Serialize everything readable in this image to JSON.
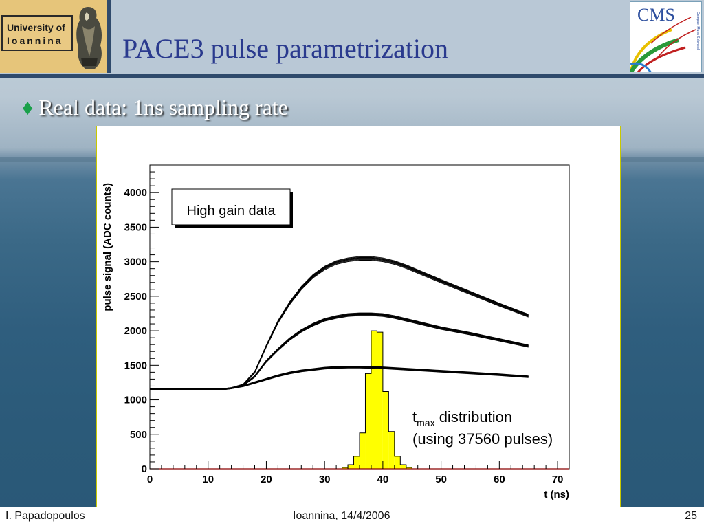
{
  "header": {
    "title": "PACE3 pulse parametrization",
    "logo_left": {
      "line1": "University of",
      "line2": "Ioannina"
    },
    "logo_right": {
      "text": "CMS",
      "small": "Compact Muon Solenoid"
    }
  },
  "bullet": "Real data: 1ns sampling rate",
  "chart_data": {
    "type": "line",
    "xlabel": "t (ns)",
    "ylabel": "pulse signal (ADC counts)",
    "xlim": [
      0,
      72
    ],
    "ylim": [
      0,
      4400
    ],
    "xticks": [
      0,
      10,
      20,
      30,
      40,
      50,
      60,
      70
    ],
    "yticks": [
      0,
      500,
      1000,
      1500,
      2000,
      2500,
      3000,
      3500,
      4000
    ],
    "legend_box": "High gain data",
    "annotation": {
      "t": "t",
      "sub": "max",
      "rest": " distribution",
      "line2": "(using 37560 pulses)"
    },
    "grid": false,
    "series": [
      {
        "x": [
          0,
          13,
          14,
          16,
          18,
          20,
          22,
          24,
          26,
          28,
          30,
          32,
          34,
          36,
          38,
          40,
          42,
          44,
          46,
          48,
          50,
          55,
          60,
          65
        ],
        "y": [
          1160,
          1160,
          1170,
          1220,
          1400,
          1780,
          2130,
          2400,
          2620,
          2790,
          2910,
          2990,
          3030,
          3050,
          3050,
          3030,
          2990,
          2930,
          2860,
          2790,
          2720,
          2550,
          2380,
          2220
        ]
      },
      {
        "x": [
          0,
          13,
          14,
          16,
          18,
          20,
          22,
          24,
          26,
          28,
          30,
          32,
          34,
          36,
          38,
          40,
          42,
          44,
          46,
          48,
          50,
          55,
          60,
          65
        ],
        "y": [
          1160,
          1160,
          1170,
          1210,
          1340,
          1560,
          1730,
          1880,
          2000,
          2090,
          2160,
          2200,
          2230,
          2240,
          2240,
          2230,
          2200,
          2160,
          2120,
          2080,
          2040,
          1960,
          1870,
          1780
        ]
      },
      {
        "x": [
          0,
          13,
          14,
          16,
          18,
          20,
          22,
          24,
          26,
          28,
          30,
          32,
          34,
          36,
          38,
          40,
          42,
          44,
          46,
          48,
          50,
          55,
          60,
          65
        ],
        "y": [
          1160,
          1160,
          1170,
          1200,
          1250,
          1300,
          1350,
          1390,
          1420,
          1440,
          1460,
          1470,
          1475,
          1475,
          1470,
          1465,
          1455,
          1445,
          1435,
          1425,
          1415,
          1390,
          1365,
          1335
        ]
      }
    ],
    "histogram": {
      "bins": [
        33,
        34,
        35,
        36,
        37,
        38,
        39,
        40,
        41,
        42,
        43,
        44
      ],
      "values": [
        20,
        60,
        180,
        520,
        1380,
        2000,
        1980,
        1120,
        540,
        180,
        60,
        20
      ],
      "color": "#ffff00"
    }
  },
  "footer": {
    "author": "I. Papadopoulos",
    "place_date": "Ioannina, 14/4/2006",
    "page": "25"
  }
}
